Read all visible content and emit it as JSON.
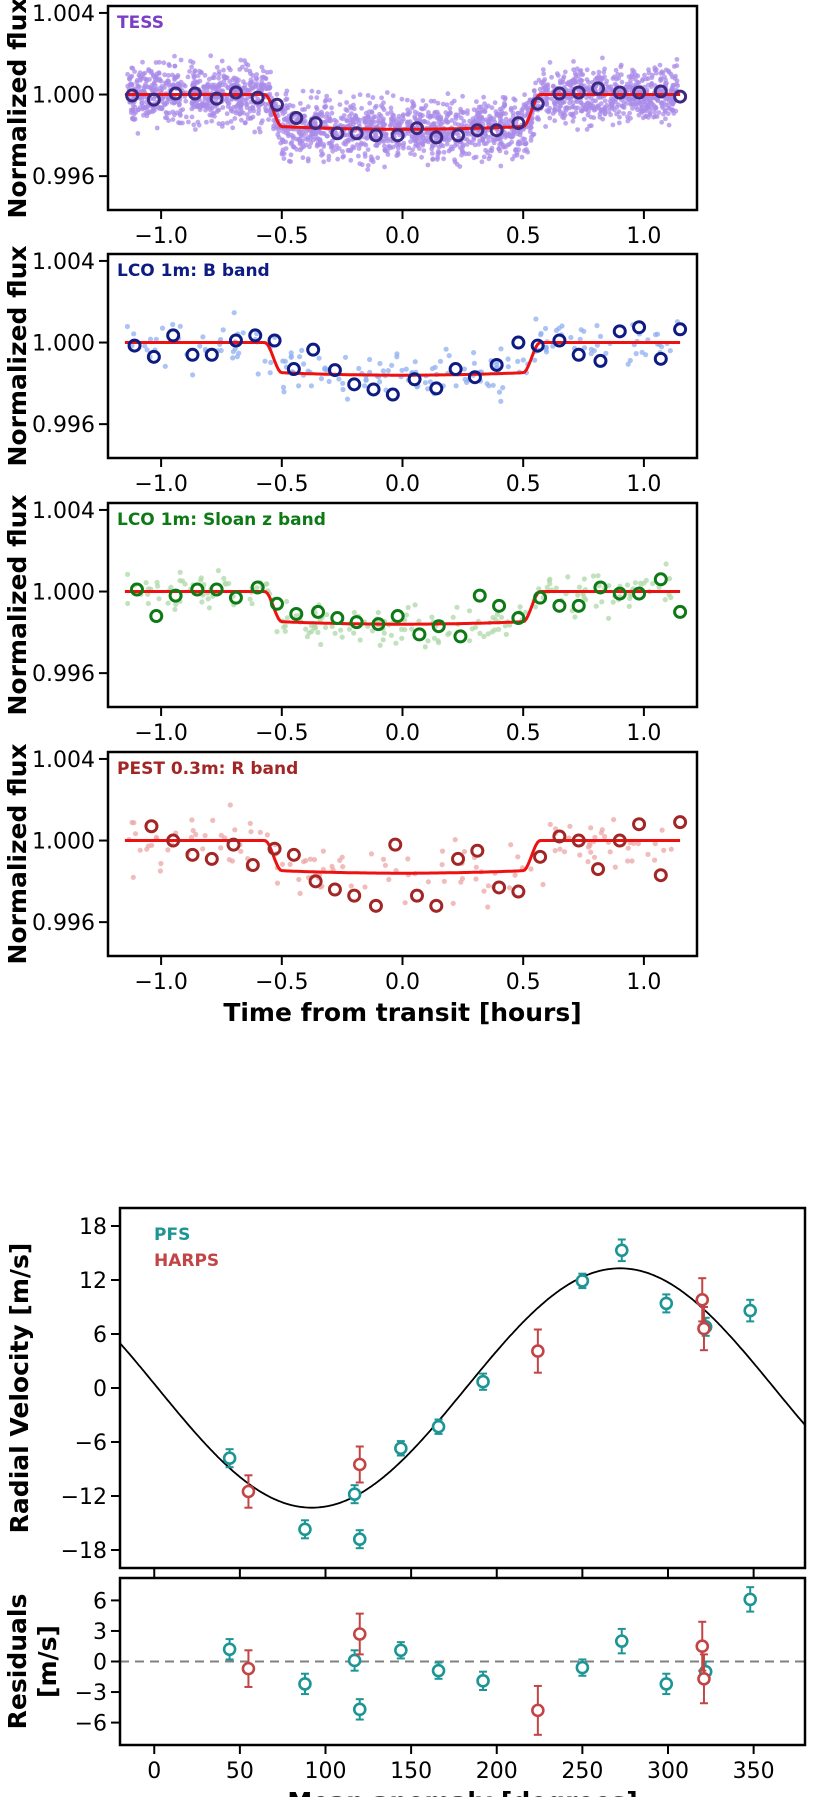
{
  "colors": {
    "model": "#ee1111",
    "rv_model": "#000000",
    "zero_line": "#808080",
    "frame": "#000000"
  },
  "chart_data": [
    {
      "type": "scatter",
      "id": "tess",
      "label": "TESS",
      "label_color": "#7b3fc4",
      "scatter_color": "#a98be8",
      "bin_color": "#3d2a80",
      "ylabel": "Normalized flux",
      "xlabel": "",
      "xlim": [
        -1.22,
        1.22
      ],
      "ylim": [
        0.99434,
        1.00434
      ],
      "xticks": [
        -1.0,
        -0.5,
        0.0,
        0.5,
        1.0
      ],
      "xtick_labels": [
        "−1.0",
        "−0.5",
        "0.0",
        "0.5",
        "1.0"
      ],
      "yticks": [
        1.004,
        1.0,
        0.996
      ],
      "ytick_labels": [
        "1.004",
        "1.000",
        "0.996"
      ],
      "model": {
        "depth": 0.0017,
        "t1": 0.57,
        "t2": 0.5
      },
      "binned": {
        "x": [
          -1.12,
          -1.03,
          -0.94,
          -0.86,
          -0.77,
          -0.69,
          -0.6,
          -0.52,
          -0.44,
          -0.36,
          -0.27,
          -0.19,
          -0.11,
          -0.02,
          0.06,
          0.14,
          0.23,
          0.31,
          0.39,
          0.48,
          0.56,
          0.65,
          0.73,
          0.81,
          0.9,
          0.98,
          1.07,
          1.15
        ],
        "y": [
          0.99995,
          0.99975,
          1.00005,
          1.00005,
          0.9998,
          1.0001,
          0.99985,
          0.9995,
          0.99885,
          0.9986,
          0.9981,
          0.9981,
          0.998,
          0.998,
          0.99835,
          0.9979,
          0.998,
          0.99825,
          0.99825,
          0.9986,
          0.99955,
          1.00005,
          1.0001,
          1.0003,
          1.0001,
          1.0001,
          1.00015,
          0.9999
        ]
      },
      "scatter_n": 2400,
      "scatter_sigma": 0.0018
    },
    {
      "type": "scatter",
      "id": "lco_b",
      "label": "LCO 1m: B band",
      "label_color": "#0d1b82",
      "scatter_color": "#8fb0f0",
      "bin_color": "#0d1b82",
      "ylabel": "Normalized flux",
      "xlabel": "",
      "xlim": [
        -1.22,
        1.22
      ],
      "ylim": [
        0.99434,
        1.00434
      ],
      "xticks": [
        -1.0,
        -0.5,
        0.0,
        0.5,
        1.0
      ],
      "xtick_labels": [
        "−1.0",
        "−0.5",
        "0.0",
        "0.5",
        "1.0"
      ],
      "yticks": [
        1.004,
        1.0,
        0.996
      ],
      "ytick_labels": [
        "1.004",
        "1.000",
        "0.996"
      ],
      "model": {
        "depth": 0.0016,
        "t1": 0.57,
        "t2": 0.5
      },
      "binned": {
        "x": [
          -1.11,
          -1.03,
          -0.95,
          -0.87,
          -0.79,
          -0.69,
          -0.61,
          -0.53,
          -0.45,
          -0.37,
          -0.28,
          -0.2,
          -0.12,
          -0.04,
          0.05,
          0.14,
          0.22,
          0.3,
          0.39,
          0.48,
          0.56,
          0.65,
          0.73,
          0.82,
          0.9,
          0.98,
          1.07,
          1.15
        ],
        "y": [
          0.99985,
          0.9993,
          1.00035,
          0.9994,
          0.9994,
          1.0001,
          1.00035,
          1.0001,
          0.9987,
          0.99965,
          0.99865,
          0.99795,
          0.9977,
          0.99745,
          0.9982,
          0.99775,
          0.9987,
          0.9983,
          0.9989,
          1.0,
          0.99985,
          1.0001,
          0.9994,
          0.9991,
          1.00055,
          1.00075,
          0.9992,
          1.00065
        ]
      },
      "scatter_n": 200,
      "scatter_sigma": 0.0015
    },
    {
      "type": "scatter",
      "id": "lco_z",
      "label": "LCO 1m: Sloan z band",
      "label_color": "#0e7a16",
      "scatter_color": "#aed8a8",
      "bin_color": "#0e7a16",
      "ylabel": "Normalized flux",
      "xlabel": "",
      "xlim": [
        -1.22,
        1.22
      ],
      "ylim": [
        0.99434,
        1.00434
      ],
      "xticks": [
        -1.0,
        -0.5,
        0.0,
        0.5,
        1.0
      ],
      "xtick_labels": [
        "−1.0",
        "−0.5",
        "0.0",
        "0.5",
        "1.0"
      ],
      "yticks": [
        1.004,
        1.0,
        0.996
      ],
      "ytick_labels": [
        "1.004",
        "1.000",
        "0.996"
      ],
      "model": {
        "depth": 0.0016,
        "t1": 0.57,
        "t2": 0.5
      },
      "binned": {
        "x": [
          -1.1,
          -1.02,
          -0.94,
          -0.85,
          -0.77,
          -0.69,
          -0.6,
          -0.52,
          -0.44,
          -0.35,
          -0.27,
          -0.19,
          -0.1,
          -0.02,
          0.07,
          0.15,
          0.24,
          0.32,
          0.4,
          0.48,
          0.57,
          0.65,
          0.73,
          0.82,
          0.9,
          0.98,
          1.07,
          1.15
        ],
        "y": [
          1.0001,
          0.9988,
          0.9998,
          1.0001,
          1.0001,
          0.9997,
          1.0002,
          0.9994,
          0.9989,
          0.999,
          0.9987,
          0.9985,
          0.9984,
          0.9988,
          0.9979,
          0.9983,
          0.9978,
          0.9998,
          0.9993,
          0.9987,
          0.9997,
          0.9993,
          0.9993,
          1.0002,
          0.9999,
          0.9999,
          1.0006,
          0.999
        ]
      },
      "scatter_n": 220,
      "scatter_sigma": 0.0012
    },
    {
      "type": "scatter",
      "id": "pest",
      "label": "PEST 0.3m: R band",
      "label_color": "#a32626",
      "scatter_color": "#eca6a6",
      "bin_color": "#a32626",
      "ylabel": "Normalized flux",
      "xlabel": "Time from transit [hours]",
      "xlim": [
        -1.22,
        1.22
      ],
      "ylim": [
        0.99434,
        1.00434
      ],
      "xticks": [
        -1.0,
        -0.5,
        0.0,
        0.5,
        1.0
      ],
      "xtick_labels": [
        "−1.0",
        "−0.5",
        "0.0",
        "0.5",
        "1.0"
      ],
      "yticks": [
        1.004,
        1.0,
        0.996
      ],
      "ytick_labels": [
        "1.004",
        "1.000",
        "0.996"
      ],
      "model": {
        "depth": 0.0016,
        "t1": 0.57,
        "t2": 0.5
      },
      "binned": {
        "x": [
          -1.04,
          -0.95,
          -0.87,
          -0.79,
          -0.7,
          -0.62,
          -0.53,
          -0.45,
          -0.36,
          -0.28,
          -0.2,
          -0.11,
          -0.03,
          0.06,
          0.14,
          0.23,
          0.31,
          0.4,
          0.48,
          0.57,
          0.65,
          0.73,
          0.81,
          0.9,
          0.98,
          1.07,
          1.15
        ],
        "y": [
          1.0007,
          1.0,
          0.9993,
          0.9991,
          0.9998,
          0.9988,
          0.9996,
          0.9993,
          0.998,
          0.9976,
          0.9973,
          0.9968,
          0.9998,
          0.9973,
          0.9968,
          0.9991,
          0.9995,
          0.9977,
          0.9975,
          0.9992,
          1.0002,
          1.0,
          0.9986,
          1.0,
          1.0008,
          0.9983,
          1.0009
        ]
      },
      "scatter_n": 140,
      "scatter_sigma": 0.0018
    },
    {
      "type": "scatter",
      "id": "rv",
      "ylabel": "Radial Velocity [m/s]",
      "xlabel": "",
      "xlim": [
        -20,
        380
      ],
      "ylim": [
        -20,
        20
      ],
      "yticks": [
        18,
        12,
        6,
        0,
        -6,
        -12,
        -18
      ],
      "ytick_labels": [
        "18",
        "12",
        "6",
        "0",
        "−6",
        "−12",
        "−18"
      ],
      "xticks": [
        0,
        50,
        100,
        150,
        200,
        250,
        300,
        350
      ],
      "model": {
        "amplitude": 13.3,
        "peak_at_degrees": 272
      },
      "legend": [
        {
          "name": "PFS",
          "color": "#1d9595"
        },
        {
          "name": "HARPS",
          "color": "#c34444"
        }
      ],
      "series": [
        {
          "name": "PFS",
          "color": "#1d9595",
          "x": [
            44,
            88,
            117,
            120,
            144,
            166,
            192,
            250,
            273,
            299,
            322,
            348
          ],
          "y": [
            -7.8,
            -15.7,
            -11.8,
            -16.8,
            -6.7,
            -4.3,
            0.7,
            11.9,
            15.3,
            9.4,
            6.8,
            8.6
          ],
          "err": [
            1.0,
            1.0,
            1.0,
            1.0,
            0.8,
            0.8,
            0.9,
            0.8,
            1.2,
            1.0,
            1.0,
            1.2
          ]
        },
        {
          "name": "HARPS",
          "color": "#c34444",
          "x": [
            55,
            120,
            224,
            320,
            321
          ],
          "y": [
            -11.5,
            -8.5,
            4.1,
            9.8,
            6.6
          ],
          "err": [
            1.8,
            2.0,
            2.4,
            2.4,
            2.4
          ]
        }
      ]
    },
    {
      "type": "scatter",
      "id": "residuals",
      "ylabel": "Residuals\n[m/s]",
      "xlabel": "Mean anomaly [degrees]",
      "xlim": [
        -20,
        380
      ],
      "ylim": [
        -8.2,
        8.2
      ],
      "yticks": [
        6,
        3,
        0,
        -3,
        -6
      ],
      "ytick_labels": [
        "6",
        "3",
        "0",
        "−3",
        "−6"
      ],
      "xticks": [
        0,
        50,
        100,
        150,
        200,
        250,
        300,
        350
      ],
      "xtick_labels": [
        "0",
        "50",
        "100",
        "150",
        "200",
        "250",
        "300",
        "350"
      ],
      "series": [
        {
          "name": "PFS",
          "color": "#1d9595",
          "x": [
            44,
            88,
            117,
            120,
            144,
            166,
            192,
            250,
            273,
            299,
            322,
            348
          ],
          "y": [
            1.2,
            -2.2,
            0.1,
            -4.7,
            1.1,
            -0.9,
            -1.9,
            -0.6,
            2.0,
            -2.2,
            -1.0,
            6.1
          ],
          "err": [
            1.0,
            1.0,
            1.0,
            1.0,
            0.8,
            0.8,
            0.9,
            0.8,
            1.2,
            1.0,
            1.0,
            1.2
          ]
        },
        {
          "name": "HARPS",
          "color": "#c34444",
          "x": [
            55,
            120,
            224,
            320,
            321
          ],
          "y": [
            -0.7,
            2.7,
            -4.8,
            1.5,
            -1.7
          ],
          "err": [
            1.8,
            2.0,
            2.4,
            2.4,
            2.4
          ]
        }
      ]
    }
  ]
}
